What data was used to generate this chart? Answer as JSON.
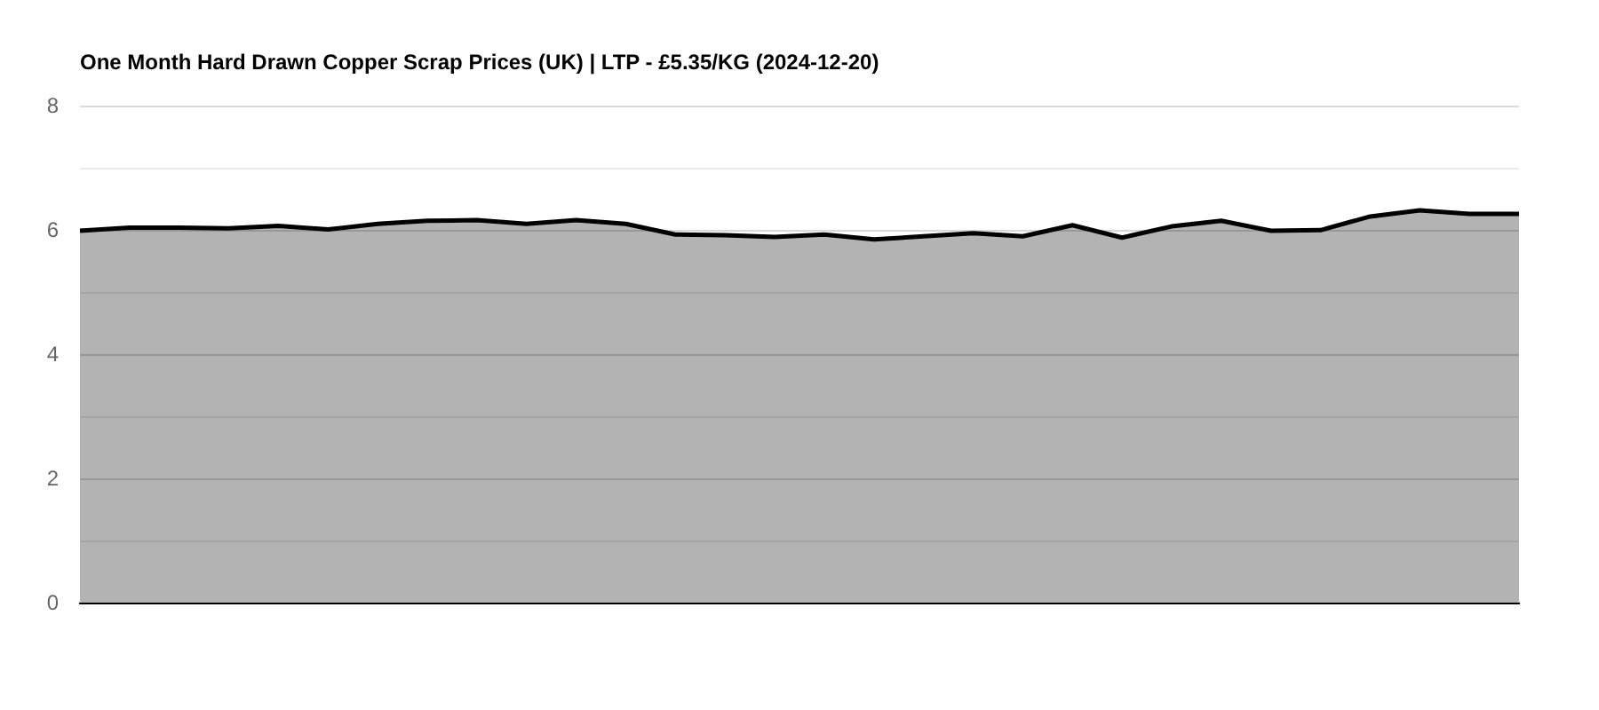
{
  "chart_data": {
    "type": "area",
    "title": "One Month Hard Drawn Copper Scrap Prices (UK) | LTP - £5.35/KG (2024-12-20)",
    "categories": [
      null,
      null,
      null,
      null,
      null,
      null,
      null,
      null,
      null,
      null,
      null,
      null,
      null,
      null,
      null,
      null,
      null,
      null,
      null,
      null,
      null,
      null,
      null,
      null,
      null,
      null,
      null,
      null,
      null,
      null
    ],
    "values": [
      6.0,
      6.05,
      6.05,
      6.04,
      6.08,
      6.02,
      6.11,
      6.16,
      6.17,
      6.11,
      6.17,
      6.11,
      5.94,
      5.93,
      5.9,
      5.94,
      5.86,
      5.91,
      5.96,
      5.91,
      6.09,
      5.89,
      6.07,
      6.16,
      6.0,
      6.01,
      6.23,
      6.33,
      6.27,
      6.27
    ],
    "color": "#b3b3b3",
    "ylim": [
      0,
      8
    ],
    "yticks": [
      0,
      {
        "value": 1,
        "label": null
      },
      2,
      {
        "value": 3,
        "label": null
      },
      4,
      {
        "value": 5,
        "label": null
      },
      6,
      {
        "value": 7,
        "label": null
      },
      8
    ],
    "grid": "y",
    "legend": false,
    "tick_labels": "y",
    "marker": "none"
  }
}
